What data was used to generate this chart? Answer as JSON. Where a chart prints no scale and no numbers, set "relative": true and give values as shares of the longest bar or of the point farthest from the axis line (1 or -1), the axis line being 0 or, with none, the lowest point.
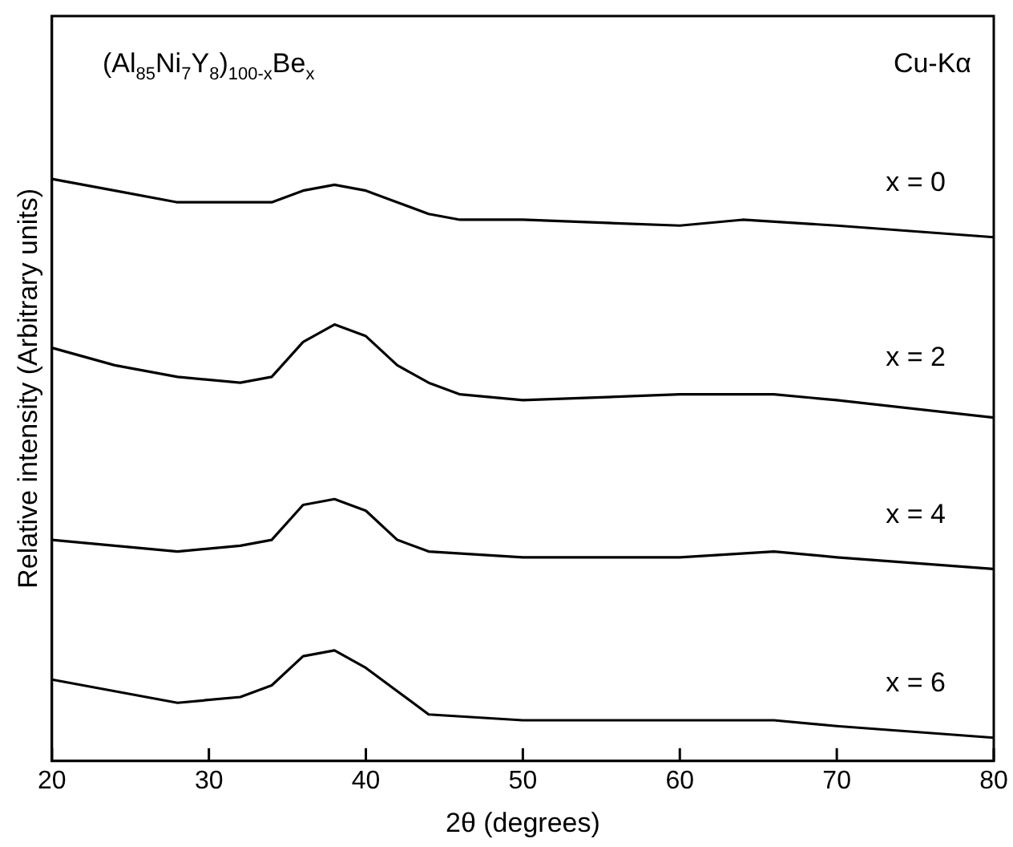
{
  "chart_data": {
    "type": "line",
    "title": "(Al$_{85}$Ni$_{7}$Y$_{8}$)$_{100-x}$Be$_{x}$",
    "annotations": [
      "Cu-Kα"
    ],
    "xlabel": "2θ (degrees)",
    "ylabel": "Relative intensity (Arbitrary units)",
    "relative": true,
    "xlim": [
      20,
      80
    ],
    "xticks": [
      20,
      30,
      40,
      50,
      60,
      70,
      80
    ],
    "tick_labels": "x",
    "grid": false,
    "legend": false,
    "marker": "none",
    "line_style": "solid",
    "series": [
      {
        "name": "x = 0",
        "color": "#000000",
        "x": [
          20,
          24,
          28,
          32,
          34,
          36,
          38,
          40,
          42,
          44,
          46,
          50,
          60,
          64,
          70,
          80
        ],
        "values": [
          1.0,
          0.98,
          0.96,
          0.96,
          0.96,
          0.98,
          0.99,
          0.98,
          0.96,
          0.94,
          0.93,
          0.93,
          0.92,
          0.93,
          0.92,
          0.9
        ]
      },
      {
        "name": "x = 2",
        "color": "#000000",
        "x": [
          20,
          24,
          28,
          32,
          34,
          36,
          38,
          40,
          42,
          44,
          46,
          50,
          60,
          66,
          70,
          80
        ],
        "values": [
          0.71,
          0.68,
          0.66,
          0.65,
          0.66,
          0.72,
          0.75,
          0.73,
          0.68,
          0.65,
          0.63,
          0.62,
          0.63,
          0.63,
          0.62,
          0.59
        ]
      },
      {
        "name": "x = 4",
        "color": "#000000",
        "x": [
          20,
          28,
          32,
          34,
          36,
          38,
          40,
          42,
          44,
          50,
          60,
          66,
          70,
          80
        ],
        "values": [
          0.38,
          0.36,
          0.37,
          0.38,
          0.44,
          0.45,
          0.43,
          0.38,
          0.36,
          0.35,
          0.35,
          0.36,
          0.35,
          0.33
        ]
      },
      {
        "name": "x = 6",
        "color": "#000000",
        "x": [
          20,
          24,
          28,
          32,
          34,
          36,
          38,
          40,
          42,
          44,
          50,
          60,
          66,
          70,
          80
        ],
        "values": [
          0.14,
          0.12,
          0.1,
          0.11,
          0.13,
          0.18,
          0.19,
          0.16,
          0.12,
          0.08,
          0.07,
          0.07,
          0.07,
          0.06,
          0.04
        ]
      }
    ]
  }
}
